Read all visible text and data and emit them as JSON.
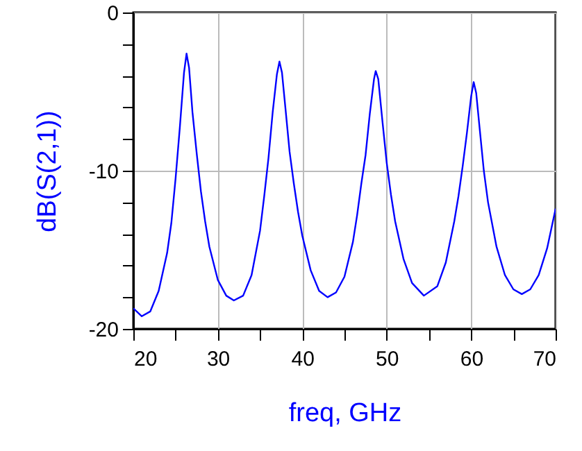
{
  "chart_data": {
    "type": "line",
    "xlabel": "freq, GHz",
    "ylabel": "dB(S(2,1))",
    "x": [
      20,
      21,
      22,
      23,
      24,
      24.5,
      25,
      25.5,
      26,
      26.3,
      26.6,
      27,
      27.5,
      28,
      28.5,
      29,
      30,
      31,
      31.9,
      33,
      34,
      35,
      35.5,
      36,
      36.5,
      37,
      37.3,
      37.6,
      38,
      38.5,
      39,
      39.5,
      40,
      41,
      42,
      43,
      44,
      45,
      46,
      46.5,
      47,
      47.5,
      48,
      48.5,
      48.7,
      49,
      49.5,
      50,
      50.5,
      51,
      52,
      53,
      54.4,
      56,
      57,
      58,
      58.5,
      59,
      59.5,
      60,
      60.3,
      60.6,
      61,
      61.5,
      62,
      63,
      64,
      65,
      66,
      67,
      68,
      69,
      70
    ],
    "series": [
      {
        "color": "#0000ff",
        "values": [
          -18.7,
          -19.2,
          -18.9,
          -17.6,
          -15.2,
          -13.3,
          -10.5,
          -7.3,
          -3.8,
          -2.6,
          -3.5,
          -6.3,
          -8.9,
          -11.3,
          -13.2,
          -14.8,
          -16.9,
          -17.9,
          -18.2,
          -17.9,
          -16.6,
          -13.8,
          -11.6,
          -9.2,
          -6.3,
          -3.9,
          -3.1,
          -3.8,
          -6.0,
          -8.8,
          -10.8,
          -12.6,
          -14.1,
          -16.3,
          -17.6,
          -18.0,
          -17.7,
          -16.7,
          -14.5,
          -12.8,
          -10.8,
          -9.0,
          -6.4,
          -4.2,
          -3.7,
          -4.2,
          -6.9,
          -9.5,
          -11.5,
          -13.2,
          -15.6,
          -17.1,
          -17.9,
          -17.3,
          -15.8,
          -13.2,
          -11.6,
          -9.7,
          -7.6,
          -5.3,
          -4.4,
          -5.1,
          -7.3,
          -10.0,
          -12.0,
          -14.8,
          -16.6,
          -17.5,
          -17.8,
          -17.5,
          -16.6,
          -14.9,
          -12.4
        ]
      }
    ],
    "xlim": [
      20,
      70
    ],
    "xticks": [
      20,
      {
        "value": 25,
        "label": null
      },
      30,
      {
        "value": 35,
        "label": null
      },
      40,
      {
        "value": 45,
        "label": null
      },
      50,
      {
        "value": 55,
        "label": null
      },
      60,
      {
        "value": 65,
        "label": null
      },
      70
    ],
    "ylim": [
      -20,
      0
    ],
    "yticks": [
      -20,
      {
        "value": -18,
        "label": null
      },
      {
        "value": -16,
        "label": null
      },
      {
        "value": -14,
        "label": null
      },
      {
        "value": -12,
        "label": null
      },
      -10,
      {
        "value": -8,
        "label": null
      },
      {
        "value": -6,
        "label": null
      },
      {
        "value": -4,
        "label": null
      },
      {
        "value": -2,
        "label": null
      },
      0
    ],
    "grid": true,
    "marker": "none",
    "line_style": "solid"
  }
}
